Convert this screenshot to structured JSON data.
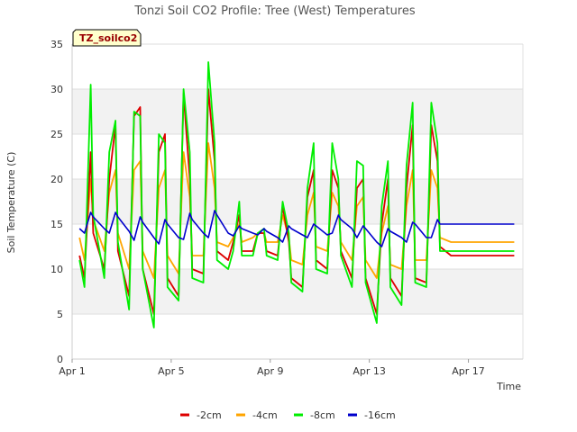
{
  "chart_data": {
    "type": "line",
    "title": "Tonzi Soil CO2 Profile: Tree (West) Temperatures",
    "xlabel": "Time",
    "ylabel": "Soil Temperature (C)",
    "badge": "TZ_soilco2",
    "x_ticks": [
      {
        "day": 0,
        "label": "Apr 1"
      },
      {
        "day": 4,
        "label": "Apr 5"
      },
      {
        "day": 8,
        "label": "Apr 9"
      },
      {
        "day": 12,
        "label": "Apr 13"
      },
      {
        "day": 16,
        "label": "Apr 17"
      }
    ],
    "xlim_days_since_apr1": [
      0,
      18.2
    ],
    "ylim": [
      0,
      35
    ],
    "y_ticks": [
      0,
      5,
      10,
      15,
      20,
      25,
      30,
      35
    ],
    "grid": true,
    "legend_position": "bottom",
    "colors": {
      "-2cm": "#dd0000",
      "-4cm": "#ffa500",
      "-8cm": "#00ee00",
      "-16cm": "#0000cc"
    },
    "series_days_since_apr1": [
      0.3,
      0.5,
      0.75,
      0.85,
      1.3,
      1.5,
      1.75,
      1.85,
      2.3,
      2.5,
      2.75,
      2.85,
      3.3,
      3.5,
      3.75,
      3.85,
      4.3,
      4.5,
      4.75,
      4.85,
      5.3,
      5.5,
      5.75,
      5.85,
      6.3,
      6.5,
      6.75,
      6.85,
      7.3,
      7.5,
      7.75,
      7.85,
      8.3,
      8.5,
      8.75,
      8.85,
      9.3,
      9.5,
      9.75,
      9.85,
      10.3,
      10.5,
      10.75,
      10.85,
      11.3,
      11.5,
      11.75,
      11.85,
      12.3,
      12.5,
      12.75,
      12.85,
      13.3,
      13.5,
      13.75,
      13.85,
      14.3,
      14.5,
      14.75,
      14.85,
      15.3,
      15.5,
      15.75,
      15.85,
      16.3,
      16.5,
      16.75,
      16.85,
      17.3,
      17.5,
      17.75,
      17.85
    ],
    "series": [
      {
        "name": "-2cm",
        "values": [
          11.5,
          9.0,
          23.0,
          14.0,
          10.0,
          20.0,
          26.0,
          12.0,
          7.0,
          27.0,
          28.0,
          10.0,
          5.0,
          23.0,
          25.0,
          9.0,
          7.0,
          29.5,
          20.0,
          10.0,
          9.5,
          30.0,
          22.0,
          12.0,
          11.0,
          13.0,
          16.0,
          12.0,
          12.0,
          14.0,
          14.0,
          12.0,
          11.5,
          17.0,
          13.0,
          9.0,
          8.0,
          18.0,
          21.0,
          11.0,
          10.0,
          21.0,
          19.0,
          12.0,
          9.0,
          19.0,
          20.0,
          9.0,
          5.0,
          15.0,
          20.0,
          9.0,
          7.0,
          19.0,
          26.0,
          9.0,
          8.5,
          26.0,
          22.0,
          12.5,
          11.5,
          11.5,
          11.5,
          11.5,
          11.5,
          11.5,
          11.5,
          11.5,
          11.5,
          11.5,
          11.5,
          11.5
        ]
      },
      {
        "name": "-4cm",
        "values": [
          13.5,
          11.0,
          20.0,
          15.5,
          12.0,
          18.5,
          21.0,
          14.0,
          10.0,
          21.0,
          22.0,
          12.0,
          9.0,
          19.0,
          21.0,
          11.5,
          9.5,
          23.0,
          18.0,
          11.5,
          11.5,
          24.0,
          19.0,
          13.0,
          12.5,
          13.5,
          15.0,
          13.0,
          13.5,
          14.0,
          14.0,
          13.0,
          13.0,
          16.0,
          13.5,
          11.0,
          10.5,
          16.0,
          18.5,
          12.5,
          12.0,
          18.5,
          17.0,
          13.0,
          11.0,
          17.0,
          18.0,
          11.0,
          9.0,
          14.0,
          17.0,
          10.5,
          10.0,
          17.0,
          21.0,
          11.0,
          11.0,
          21.0,
          19.0,
          13.5,
          13.0,
          13.0,
          13.0,
          13.0,
          13.0,
          13.0,
          13.0,
          13.0,
          13.0,
          13.0,
          13.0,
          13.0
        ]
      },
      {
        "name": "-8cm",
        "values": [
          11.0,
          8.0,
          30.5,
          16.0,
          9.0,
          23.0,
          26.5,
          13.0,
          5.5,
          27.5,
          27.0,
          10.0,
          3.5,
          25.0,
          24.0,
          8.0,
          6.5,
          30.0,
          23.0,
          9.0,
          8.5,
          33.0,
          24.0,
          11.0,
          10.0,
          12.0,
          17.5,
          11.5,
          11.5,
          14.0,
          14.5,
          11.5,
          11.0,
          17.5,
          14.0,
          8.5,
          7.5,
          19.0,
          24.0,
          10.0,
          9.5,
          24.0,
          20.0,
          11.5,
          8.0,
          22.0,
          21.5,
          8.5,
          4.0,
          17.0,
          22.0,
          8.0,
          6.0,
          21.5,
          28.5,
          8.5,
          8.0,
          28.5,
          24.0,
          12.0,
          12.0,
          12.0,
          12.0,
          12.0,
          12.0,
          12.0,
          12.0,
          12.0,
          12.0,
          12.0,
          12.0,
          12.0
        ]
      },
      {
        "name": "-16cm",
        "values": [
          14.5,
          14.0,
          16.3,
          15.8,
          14.5,
          14.0,
          16.3,
          15.8,
          14.2,
          13.2,
          15.8,
          15.2,
          13.5,
          12.8,
          15.5,
          15.0,
          13.5,
          13.3,
          16.2,
          15.5,
          14.0,
          13.5,
          16.5,
          16.0,
          14.0,
          13.7,
          14.8,
          14.5,
          14.0,
          13.8,
          14.5,
          14.2,
          13.5,
          13.0,
          14.8,
          14.5,
          13.8,
          13.5,
          15.0,
          14.8,
          13.8,
          14.0,
          16.0,
          15.5,
          14.5,
          13.5,
          14.8,
          14.5,
          13.0,
          12.5,
          14.5,
          14.2,
          13.5,
          13.0,
          15.2,
          15.0,
          13.5,
          13.5,
          15.5,
          15.0,
          15.0,
          15.0,
          15.0,
          15.0,
          15.0,
          15.0,
          15.0,
          15.0,
          15.0,
          15.0,
          15.0,
          15.0
        ]
      }
    ]
  }
}
